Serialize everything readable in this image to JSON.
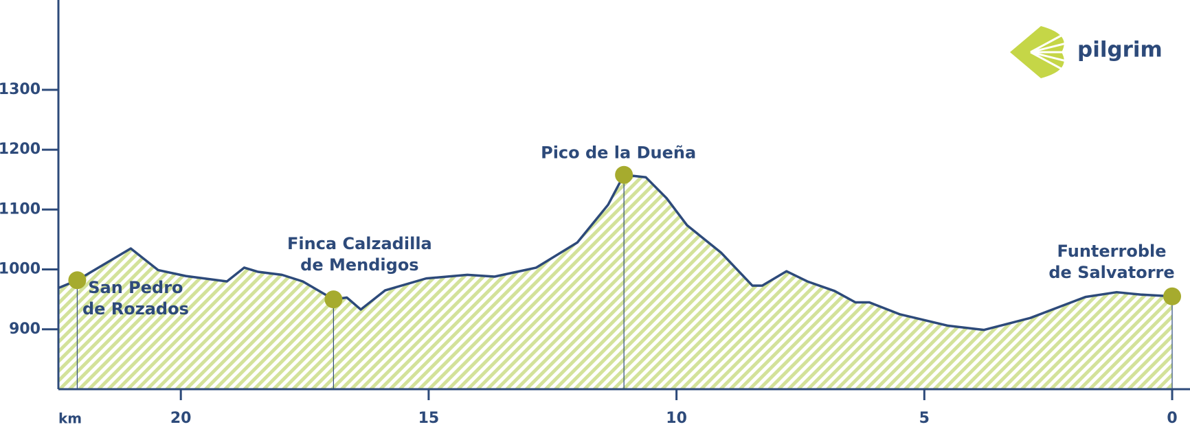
{
  "brand": "pilgrim",
  "chart_data": {
    "type": "area",
    "x_label": "km",
    "xlim": [
      22.47,
      -0.36
    ],
    "xticks": [
      20,
      15,
      10,
      5,
      0
    ],
    "ylim": [
      800,
      1450
    ],
    "yticks": [
      900,
      1000,
      1100,
      1200,
      1300
    ],
    "grid": false,
    "line_color": "#2d4a7a",
    "fill_color": "#d3e29a",
    "marker_color": "#a6ab2e",
    "x": [
      22.47,
      22.09,
      21.01,
      20.46,
      19.9,
      19.07,
      18.72,
      18.44,
      17.96,
      17.54,
      16.92,
      16.65,
      16.37,
      15.88,
      15.05,
      14.22,
      13.67,
      12.83,
      12.0,
      11.38,
      11.06,
      10.62,
      10.2,
      9.79,
      9.1,
      8.47,
      8.27,
      7.78,
      7.36,
      6.81,
      6.39,
      6.11,
      5.49,
      4.52,
      3.8,
      2.86,
      1.75,
      1.12,
      0.64,
      0
    ],
    "values": [
      969,
      982,
      1035,
      999,
      989,
      980,
      1003,
      996,
      991,
      980,
      950,
      953,
      933,
      965,
      985,
      991,
      988,
      1003,
      1045,
      1108,
      1158,
      1154,
      1119,
      1074,
      1028,
      973,
      973,
      997,
      980,
      964,
      945,
      945,
      925,
      906,
      899,
      919,
      954,
      962,
      958,
      955
    ],
    "waypoints": [
      {
        "label": [
          "San Pedro",
          "de Rozados"
        ],
        "x": 22.09,
        "value": 982
      },
      {
        "label": [
          "Finca Calzadilla",
          "de Mendigos"
        ],
        "x": 16.92,
        "value": 950
      },
      {
        "label": [
          "Pico de la Dueña"
        ],
        "x": 11.06,
        "value": 1158
      },
      {
        "label": [
          "Funterroble",
          "de Salvatorre"
        ],
        "x": 0,
        "value": 955
      }
    ]
  }
}
